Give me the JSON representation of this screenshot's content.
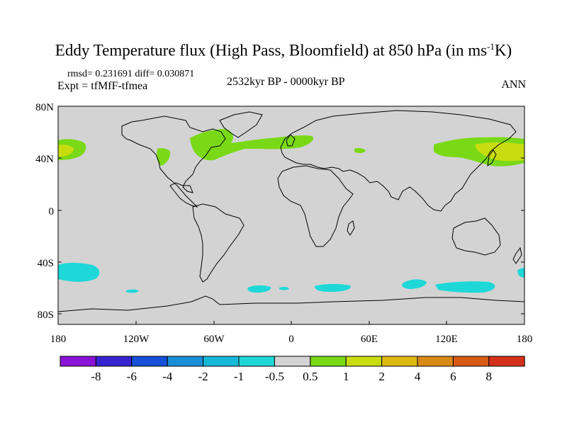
{
  "header": {
    "title_main": "Eddy Temperature flux (High Pass, Bloomfield) at 850 hPa (in ms",
    "title_sup": "-1",
    "title_end": "K)",
    "stats": "rmsd= 0.231691 diff= 0.030871",
    "expt": "Expt = tfMfF-tfmea",
    "period": "2532kyr BP - 0000kyr BP",
    "season": "ANN"
  },
  "map": {
    "lat_labels": [
      "80N",
      "40N",
      "0",
      "40S",
      "80S"
    ],
    "lon_labels": [
      "180",
      "120W",
      "60W",
      "0",
      "60E",
      "120E",
      "180"
    ],
    "background_color": "#d3d3d3",
    "anomaly_regions": [
      {
        "name": "north-pacific-east",
        "level": "0.5-1",
        "color": "#7ad916"
      },
      {
        "name": "north-pacific-east-core",
        "level": "1-2",
        "color": "#c8dc10"
      },
      {
        "name": "north-america-west",
        "level": "0.5-1",
        "color": "#7ad916"
      },
      {
        "name": "north-atlantic",
        "level": "0.5-1",
        "color": "#7ad916"
      },
      {
        "name": "north-pacific-west",
        "level": "0.5-1",
        "color": "#7ad916"
      },
      {
        "name": "north-pacific-west-core",
        "level": "1-2",
        "color": "#c8dc10"
      },
      {
        "name": "southern-ocean-pacific",
        "level": "-1--0.5",
        "color": "#1ed8d8"
      },
      {
        "name": "southern-ocean-atlantic",
        "level": "-1--0.5",
        "color": "#1ed8d8"
      },
      {
        "name": "southern-ocean-indian",
        "level": "-1--0.5",
        "color": "#1ed8d8"
      }
    ]
  },
  "colorbar": {
    "labels": [
      "-8",
      "-6",
      "-4",
      "-2",
      "-1",
      "-0.5",
      "0.5",
      "1",
      "2",
      "4",
      "6",
      "8"
    ],
    "colors": [
      "#8a13d6",
      "#3723cf",
      "#1550d6",
      "#1b8ed8",
      "#16b8d8",
      "#1fd8d6",
      "#d3d3d3",
      "#7ad916",
      "#c8dc10",
      "#dcb90f",
      "#d98a14",
      "#d65c15",
      "#d4301b"
    ]
  }
}
